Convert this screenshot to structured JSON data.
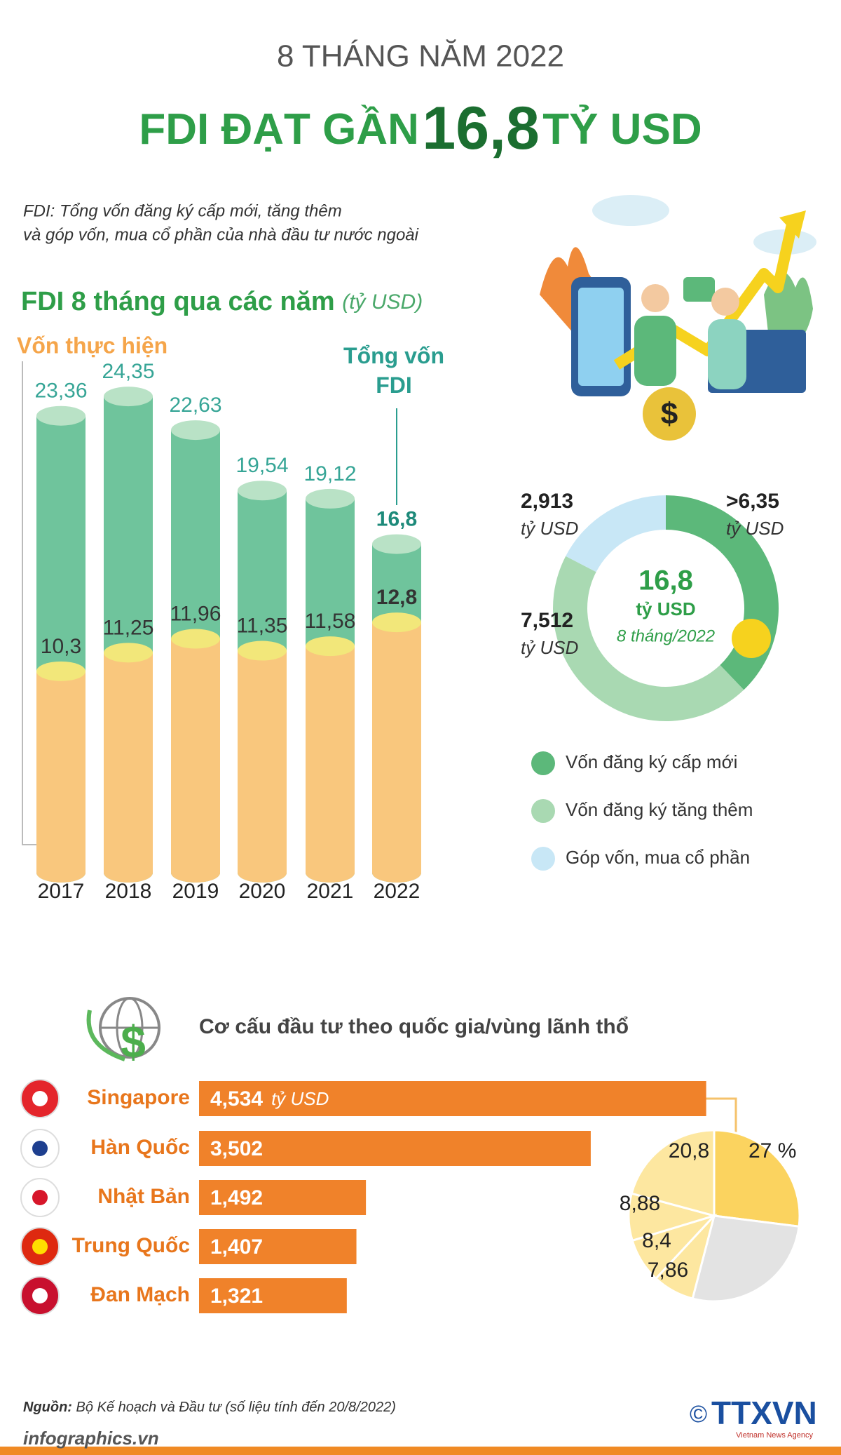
{
  "header": {
    "subtitle": "8 THÁNG NĂM 2022",
    "title_parts": [
      "FDI ĐẠT GẦN",
      "16,8",
      "TỶ USD"
    ]
  },
  "note": [
    "FDI: Tổng vốn đăng ký cấp mới, tăng thêm",
    "và góp vốn, mua cổ phần của nhà đầu tư nước ngoài"
  ],
  "chart_data": [
    {
      "type": "cylinder",
      "title": "FDI 8 tháng qua các năm",
      "unit": "(tỷ USD)",
      "categories": [
        "2017",
        "2018",
        "2019",
        "2020",
        "2021",
        "2022"
      ],
      "ylim": [
        0,
        25
      ],
      "series": [
        {
          "name": "Tổng vốn FDI",
          "color": "#6fc49c",
          "top_color": "#b9e2c6",
          "label_color": "#36a596",
          "values": [
            23.36,
            24.35,
            22.63,
            19.54,
            19.12,
            16.8
          ],
          "value_labels": [
            "23,36",
            "24,35",
            "22,63",
            "19,54",
            "19,12",
            "16,8"
          ]
        },
        {
          "name": "Vốn thực hiện",
          "color": "#f9c77d",
          "top_color": "#f2e77a",
          "label_color": "#333333",
          "values": [
            10.3,
            11.25,
            11.96,
            11.35,
            11.58,
            12.8
          ],
          "value_labels": [
            "10,3",
            "11,25",
            "11,96",
            "11,35",
            "11,58",
            "12,8"
          ]
        }
      ]
    },
    {
      "type": "donut",
      "categories": [
        "Vốn đăng ký cấp mới",
        "Vốn đăng ký tăng thêm",
        "Góp vốn, mua cổ phần"
      ],
      "values": [
        6.35,
        7.512,
        2.913
      ],
      "value_labels": [
        ">6,35",
        "7,512",
        "2,913"
      ],
      "unit": "tỷ USD",
      "colors": [
        "#5cb87a",
        "#a9d9b2",
        "#c8e7f6"
      ],
      "center": [
        "16,8",
        "tỷ USD",
        "8 tháng/2022"
      ]
    },
    {
      "type": "hbar",
      "title": "Cơ cấu đầu tư theo quốc gia/vùng lãnh thổ",
      "categories": [
        "Singapore",
        "Hàn Quốc",
        "Nhật Bản",
        "Trung Quốc",
        "Đan Mạch"
      ],
      "values": [
        4.534,
        3.502,
        1.492,
        1.407,
        1.321
      ],
      "value_labels": [
        "4,534",
        "3,502",
        "1,492",
        "1,407",
        "1,321"
      ],
      "unit": "tỷ USD",
      "color": "#f0822a",
      "xlim": [
        0,
        5
      ]
    },
    {
      "type": "pie",
      "values": [
        27,
        27.06,
        7.86,
        8.4,
        8.88,
        20.8
      ],
      "value_labels": [
        "27 %",
        null,
        "7,86",
        "8,4",
        "8,88",
        "20,8"
      ],
      "colors": [
        "#fbd35f",
        "#e3e3e3",
        "#fde7a0",
        "#fde7a0",
        "#fde7a0",
        "#fde7a0"
      ]
    }
  ],
  "source": {
    "label": "Nguồn:",
    "text": "Bộ Kế hoạch và Đầu tư (số liệu tính đến 20/8/2022)"
  },
  "footer": {
    "site": "infographics.vn",
    "copyright": "©",
    "logo": "TTXVN",
    "agency": "Vietnam News Agency"
  }
}
